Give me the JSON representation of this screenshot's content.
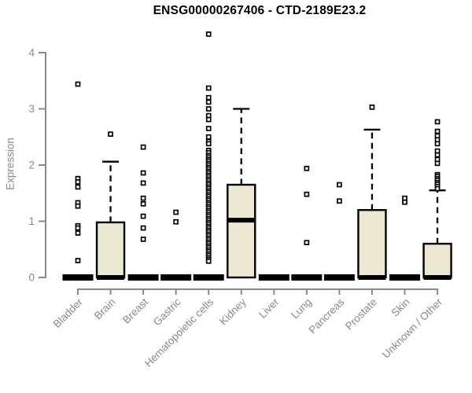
{
  "colors": {
    "box_fill": "#EDE8D1",
    "box_stroke": "#000000",
    "axis": "#8a8a8a",
    "tick_label": "#8a8a8a",
    "title": "#000000",
    "background": "#ffffff",
    "outlier_fill": "#ffffff"
  },
  "chart_data": {
    "type": "boxplot",
    "title": "ENSG00000267406 - CTD-2189E23.2",
    "xlabel": "",
    "ylabel": "Expression",
    "ylim": [
      0,
      4
    ],
    "yticks": [
      0,
      1,
      2,
      3,
      4
    ],
    "grid": false,
    "legend": "none",
    "categories": [
      "Bladder",
      "Brain",
      "Breast",
      "Gastric",
      "Hematopoietic cells",
      "Kidney",
      "Liver",
      "Lung",
      "Pancreas",
      "Prostate",
      "Skin",
      "Unknown / Other"
    ],
    "series": [
      {
        "name": "Bladder",
        "q1": 0,
        "median": 0,
        "q3": 0,
        "whisker_low": 0,
        "whisker_high": 0,
        "outliers": [
          3.44,
          1.76,
          1.7,
          1.61,
          1.33,
          1.27,
          0.92,
          0.88,
          0.79,
          0.3
        ]
      },
      {
        "name": "Brain",
        "q1": 0,
        "median": 0,
        "q3": 0.98,
        "whisker_low": 0,
        "whisker_high": 2.06,
        "outliers": [
          2.55
        ]
      },
      {
        "name": "Breast",
        "q1": 0,
        "median": 0,
        "q3": 0,
        "whisker_low": 0,
        "whisker_high": 0,
        "outliers": [
          2.32,
          1.86,
          1.68,
          1.41,
          1.31,
          1.09,
          0.88,
          0.68
        ]
      },
      {
        "name": "Gastric",
        "q1": 0,
        "median": 0,
        "q3": 0,
        "whisker_low": 0,
        "whisker_high": 0,
        "outliers": [
          1.16,
          0.99
        ]
      },
      {
        "name": "Hematopoietic cells",
        "q1": 0,
        "median": 0,
        "q3": 0,
        "whisker_low": 0,
        "whisker_high": 0,
        "outliers": [
          4.33,
          3.37,
          3.2,
          3.12,
          3.0,
          2.88,
          2.81,
          2.65,
          2.5,
          2.42,
          2.38,
          2.26,
          2.22,
          2.17,
          2.14,
          2.1,
          2.07,
          2.03,
          2.0,
          1.96,
          1.93,
          1.89,
          1.86,
          1.82,
          1.79,
          1.75,
          1.72,
          1.68,
          1.65,
          1.61,
          1.58,
          1.54,
          1.51,
          1.47,
          1.44,
          1.4,
          1.37,
          1.33,
          1.3,
          1.26,
          1.23,
          1.19,
          1.16,
          1.12,
          1.09,
          1.05,
          1.02,
          0.98,
          0.95,
          0.91,
          0.88,
          0.84,
          0.81,
          0.77,
          0.74,
          0.7,
          0.67,
          0.63,
          0.6,
          0.56,
          0.53,
          0.49,
          0.46,
          0.42,
          0.39,
          0.35,
          0.32,
          0.29
        ]
      },
      {
        "name": "Kidney",
        "q1": 0,
        "median": 1.02,
        "q3": 1.65,
        "whisker_low": 0,
        "whisker_high": 3.0,
        "outliers": []
      },
      {
        "name": "Liver",
        "q1": 0,
        "median": 0,
        "q3": 0,
        "whisker_low": 0,
        "whisker_high": 0,
        "outliers": []
      },
      {
        "name": "Lung",
        "q1": 0,
        "median": 0,
        "q3": 0,
        "whisker_low": 0,
        "whisker_high": 0,
        "outliers": [
          1.94,
          1.48,
          0.62
        ]
      },
      {
        "name": "Pancreas",
        "q1": 0,
        "median": 0,
        "q3": 0,
        "whisker_low": 0,
        "whisker_high": 0,
        "outliers": [
          1.65,
          1.36
        ]
      },
      {
        "name": "Prostate",
        "q1": 0,
        "median": 0,
        "q3": 1.2,
        "whisker_low": 0,
        "whisker_high": 2.63,
        "outliers": [
          3.03
        ]
      },
      {
        "name": "Skin",
        "q1": 0,
        "median": 0,
        "q3": 0,
        "whisker_low": 0,
        "whisker_high": 0,
        "outliers": [
          1.41,
          1.34
        ]
      },
      {
        "name": "Unknown / Other",
        "q1": 0,
        "median": 0,
        "q3": 0.6,
        "whisker_low": 0,
        "whisker_high": 1.55,
        "outliers": [
          2.77,
          2.6,
          2.52,
          2.45,
          2.38,
          2.25,
          2.18,
          2.1,
          2.03,
          1.83,
          1.8,
          1.76,
          1.73,
          1.69,
          1.66,
          1.62,
          1.58
        ]
      }
    ]
  }
}
